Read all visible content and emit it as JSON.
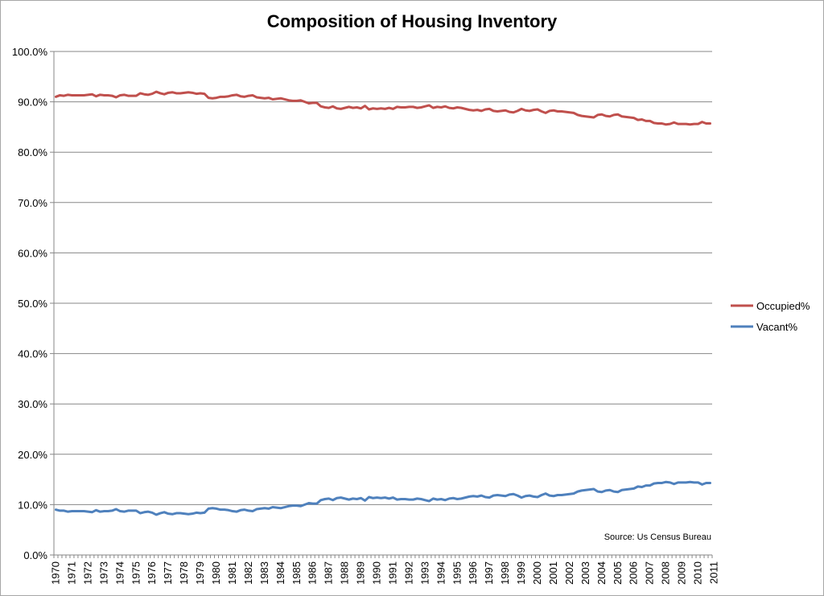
{
  "chart_data": {
    "type": "line",
    "title": "Composition of Housing Inventory",
    "source": "Source: Us Census Bureau",
    "ylim": [
      0,
      100
    ],
    "y_ticks": [
      "0.0%",
      "10.0%",
      "20.0%",
      "30.0%",
      "40.0%",
      "50.0%",
      "60.0%",
      "70.0%",
      "80.0%",
      "90.0%",
      "100.0%"
    ],
    "x_tick_labels": [
      "1970",
      "1971",
      "1972",
      "1973",
      "1974",
      "1975",
      "1976",
      "1977",
      "1978",
      "1979",
      "1980",
      "1981",
      "1982",
      "1983",
      "1984",
      "1985",
      "1986",
      "1987",
      "1988",
      "1989",
      "1990",
      "1991",
      "1992",
      "1993",
      "1994",
      "1995",
      "1996",
      "1997",
      "1998",
      "1999",
      "2000",
      "2001",
      "2002",
      "2003",
      "2004",
      "2005",
      "2006",
      "2007",
      "2008",
      "2009",
      "2010",
      "2011"
    ],
    "grid": "horizontal",
    "legend": "right",
    "series": [
      {
        "name": "Occupied%",
        "color": "#c0504d",
        "values": [
          91.0,
          91.3,
          91.2,
          91.4,
          91.3,
          91.3,
          91.3,
          91.3,
          91.4,
          91.5,
          91.1,
          91.4,
          91.3,
          91.3,
          91.2,
          90.9,
          91.3,
          91.4,
          91.2,
          91.2,
          91.2,
          91.7,
          91.5,
          91.4,
          91.6,
          92.0,
          91.7,
          91.5,
          91.8,
          91.9,
          91.7,
          91.7,
          91.8,
          91.9,
          91.8,
          91.6,
          91.7,
          91.6,
          90.8,
          90.7,
          90.8,
          91.0,
          91.0,
          91.1,
          91.3,
          91.4,
          91.1,
          91.0,
          91.2,
          91.3,
          90.9,
          90.8,
          90.7,
          90.8,
          90.5,
          90.6,
          90.7,
          90.5,
          90.3,
          90.2,
          90.2,
          90.3,
          90.0,
          89.7,
          89.8,
          89.8,
          89.1,
          88.9,
          88.8,
          89.1,
          88.7,
          88.6,
          88.8,
          89.0,
          88.8,
          88.9,
          88.7,
          89.2,
          88.5,
          88.7,
          88.6,
          88.7,
          88.6,
          88.8,
          88.6,
          89.0,
          88.9,
          88.9,
          89.0,
          89.0,
          88.8,
          88.9,
          89.1,
          89.3,
          88.8,
          89.0,
          88.9,
          89.1,
          88.8,
          88.7,
          88.9,
          88.8,
          88.6,
          88.4,
          88.3,
          88.4,
          88.2,
          88.5,
          88.6,
          88.2,
          88.1,
          88.2,
          88.3,
          88.0,
          87.9,
          88.2,
          88.6,
          88.3,
          88.2,
          88.4,
          88.5,
          88.1,
          87.8,
          88.2,
          88.3,
          88.1,
          88.1,
          88.0,
          87.9,
          87.8,
          87.4,
          87.2,
          87.1,
          87.0,
          86.9,
          87.4,
          87.5,
          87.2,
          87.1,
          87.4,
          87.5,
          87.1,
          87.0,
          86.9,
          86.8,
          86.4,
          86.5,
          86.2,
          86.2,
          85.8,
          85.7,
          85.7,
          85.5,
          85.6,
          85.9,
          85.6,
          85.6,
          85.6,
          85.5,
          85.6,
          85.6,
          86.0,
          85.7,
          85.7
        ]
      },
      {
        "name": "Vacant%",
        "color": "#4f81bd",
        "values": [
          9.0,
          8.8,
          8.8,
          8.6,
          8.7,
          8.7,
          8.7,
          8.7,
          8.6,
          8.5,
          8.9,
          8.6,
          8.7,
          8.7,
          8.8,
          9.1,
          8.7,
          8.6,
          8.8,
          8.8,
          8.8,
          8.3,
          8.5,
          8.6,
          8.4,
          8.0,
          8.3,
          8.5,
          8.2,
          8.1,
          8.3,
          8.3,
          8.2,
          8.1,
          8.2,
          8.4,
          8.3,
          8.4,
          9.2,
          9.3,
          9.2,
          9.0,
          9.0,
          8.9,
          8.7,
          8.6,
          8.9,
          9.0,
          8.8,
          8.7,
          9.1,
          9.2,
          9.3,
          9.2,
          9.5,
          9.4,
          9.3,
          9.5,
          9.7,
          9.8,
          9.8,
          9.7,
          10.0,
          10.3,
          10.2,
          10.2,
          10.9,
          11.1,
          11.2,
          10.9,
          11.3,
          11.4,
          11.2,
          11.0,
          11.2,
          11.1,
          11.3,
          10.8,
          11.5,
          11.3,
          11.4,
          11.3,
          11.4,
          11.2,
          11.4,
          11.0,
          11.1,
          11.1,
          11.0,
          11.0,
          11.2,
          11.1,
          10.9,
          10.7,
          11.2,
          11.0,
          11.1,
          10.9,
          11.2,
          11.3,
          11.1,
          11.2,
          11.4,
          11.6,
          11.7,
          11.6,
          11.8,
          11.5,
          11.4,
          11.8,
          11.9,
          11.8,
          11.7,
          12.0,
          12.1,
          11.8,
          11.4,
          11.7,
          11.8,
          11.6,
          11.5,
          11.9,
          12.2,
          11.8,
          11.7,
          11.9,
          11.9,
          12.0,
          12.1,
          12.2,
          12.6,
          12.8,
          12.9,
          13.0,
          13.1,
          12.6,
          12.5,
          12.8,
          12.9,
          12.6,
          12.5,
          12.9,
          13.0,
          13.1,
          13.2,
          13.6,
          13.5,
          13.8,
          13.8,
          14.2,
          14.3,
          14.3,
          14.5,
          14.4,
          14.1,
          14.4,
          14.4,
          14.4,
          14.5,
          14.4,
          14.4,
          14.0,
          14.3,
          14.3
        ]
      }
    ]
  }
}
